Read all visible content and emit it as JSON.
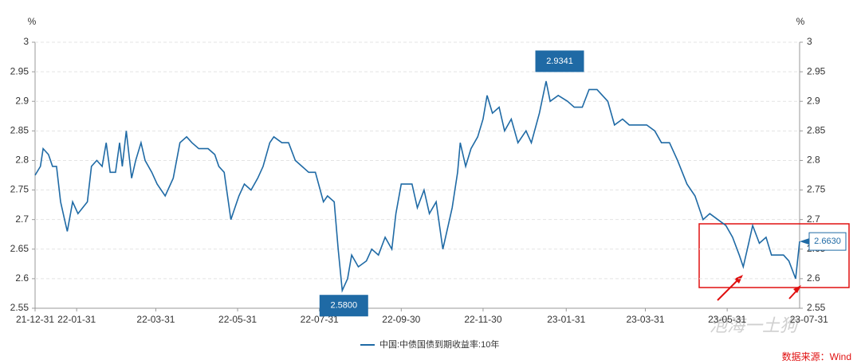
{
  "chart_data": {
    "type": "line",
    "y_unit": "%",
    "x": [
      "21-12-31",
      "22-01-04",
      "22-01-06",
      "22-01-10",
      "22-01-13",
      "22-01-16",
      "22-01-19",
      "22-01-22",
      "22-01-24",
      "22-01-28",
      "22-02-01",
      "22-02-08",
      "22-02-11",
      "22-02-15",
      "22-02-19",
      "22-02-22",
      "22-02-25",
      "22-03-01",
      "22-03-04",
      "22-03-06",
      "22-03-09",
      "22-03-13",
      "22-03-16",
      "22-03-20",
      "22-03-23",
      "22-03-28",
      "22-04-01",
      "22-04-07",
      "22-04-13",
      "22-04-18",
      "22-04-23",
      "22-04-27",
      "22-05-02",
      "22-05-09",
      "22-05-14",
      "22-05-17",
      "22-05-21",
      "22-05-26",
      "22-06-01",
      "22-06-05",
      "22-06-10",
      "22-06-15",
      "22-06-19",
      "22-06-24",
      "22-06-27",
      "22-07-03",
      "22-07-08",
      "22-07-13",
      "22-07-18",
      "22-07-23",
      "22-07-28",
      "22-08-03",
      "22-08-06",
      "22-08-11",
      "22-08-14",
      "22-08-17",
      "22-08-21",
      "22-08-24",
      "22-08-29",
      "22-09-04",
      "22-09-08",
      "22-09-13",
      "22-09-18",
      "22-09-23",
      "22-09-26",
      "22-09-30",
      "22-10-08",
      "22-10-12",
      "22-10-17",
      "22-10-21",
      "22-10-26",
      "22-10-31",
      "22-11-04",
      "22-11-07",
      "22-11-11",
      "22-11-13",
      "22-11-17",
      "22-11-21",
      "22-11-26",
      "22-11-30",
      "22-12-03",
      "22-12-07",
      "22-12-12",
      "22-12-16",
      "22-12-21",
      "22-12-26",
      "23-01-01",
      "23-01-05",
      "23-01-11",
      "23-01-16",
      "23-01-19",
      "23-01-25",
      "23-02-01",
      "23-02-06",
      "23-02-12",
      "23-02-17",
      "23-02-23",
      "23-03-03",
      "23-03-08",
      "23-03-14",
      "23-03-19",
      "23-03-25",
      "23-04-01",
      "23-04-07",
      "23-04-12",
      "23-04-18",
      "23-04-24",
      "23-05-01",
      "23-05-07",
      "23-05-13",
      "23-05-18",
      "23-05-24",
      "23-05-30",
      "23-06-04",
      "23-06-09",
      "23-06-12",
      "23-06-16",
      "23-06-19",
      "23-06-24",
      "23-06-29",
      "23-07-03",
      "23-07-07",
      "23-07-12",
      "23-07-16",
      "23-07-21",
      "23-07-24"
    ],
    "series": [
      {
        "name": "中国:中债国债到期收益率:10年",
        "color": "#1f6aa5",
        "values": [
          2.775,
          2.79,
          2.82,
          2.81,
          2.79,
          2.79,
          2.73,
          2.7,
          2.68,
          2.73,
          2.71,
          2.73,
          2.79,
          2.8,
          2.79,
          2.83,
          2.78,
          2.78,
          2.83,
          2.79,
          2.85,
          2.77,
          2.8,
          2.83,
          2.8,
          2.78,
          2.76,
          2.74,
          2.77,
          2.83,
          2.84,
          2.83,
          2.82,
          2.82,
          2.81,
          2.79,
          2.78,
          2.7,
          2.74,
          2.76,
          2.75,
          2.77,
          2.79,
          2.83,
          2.84,
          2.83,
          2.83,
          2.8,
          2.79,
          2.78,
          2.78,
          2.73,
          2.74,
          2.73,
          2.65,
          2.58,
          2.6,
          2.64,
          2.62,
          2.63,
          2.65,
          2.64,
          2.67,
          2.65,
          2.71,
          2.76,
          2.76,
          2.72,
          2.75,
          2.71,
          2.73,
          2.65,
          2.69,
          2.72,
          2.78,
          2.83,
          2.79,
          2.82,
          2.84,
          2.87,
          2.91,
          2.88,
          2.89,
          2.85,
          2.87,
          2.83,
          2.85,
          2.83,
          2.88,
          2.9341,
          2.9,
          2.91,
          2.9,
          2.89,
          2.89,
          2.92,
          2.92,
          2.9,
          2.86,
          2.87,
          2.86,
          2.86,
          2.86,
          2.85,
          2.83,
          2.83,
          2.8,
          2.76,
          2.74,
          2.7,
          2.71,
          2.7,
          2.69,
          2.67,
          2.64,
          2.62,
          2.66,
          2.69,
          2.66,
          2.67,
          2.64,
          2.64,
          2.64,
          2.63,
          2.6,
          2.663
        ]
      }
    ],
    "xlim": [
      "21-12-31",
      "23-07-24"
    ],
    "xticks": [
      "21-12-31",
      "22-01-31",
      "22-03-31",
      "22-05-31",
      "22-07-31",
      "22-09-30",
      "22-11-30",
      "23-01-31",
      "23-03-31",
      "23-05-31",
      "23-07-31"
    ],
    "ylim": [
      2.55,
      3
    ],
    "yticks": [
      2.55,
      2.6,
      2.65,
      2.7,
      2.75,
      2.8,
      2.85,
      2.9,
      2.95,
      3
    ],
    "y2lim": [
      2.55,
      3
    ],
    "y2ticks": [
      2.55,
      2.6,
      2.65,
      2.7,
      2.75,
      2.8,
      2.85,
      2.9,
      2.95,
      3
    ],
    "grid": true,
    "annotations": [
      {
        "x": "23-01-16",
        "value": 2.9341,
        "label": "2.9341",
        "position": "above"
      },
      {
        "x": "22-08-17",
        "value": 2.58,
        "label": "2.5800",
        "position": "below"
      },
      {
        "x": "23-07-24",
        "value": 2.663,
        "label": "2.6630",
        "position": "right"
      }
    ],
    "source": "数据来源：Wind",
    "watermark": "泡海一土狗"
  }
}
